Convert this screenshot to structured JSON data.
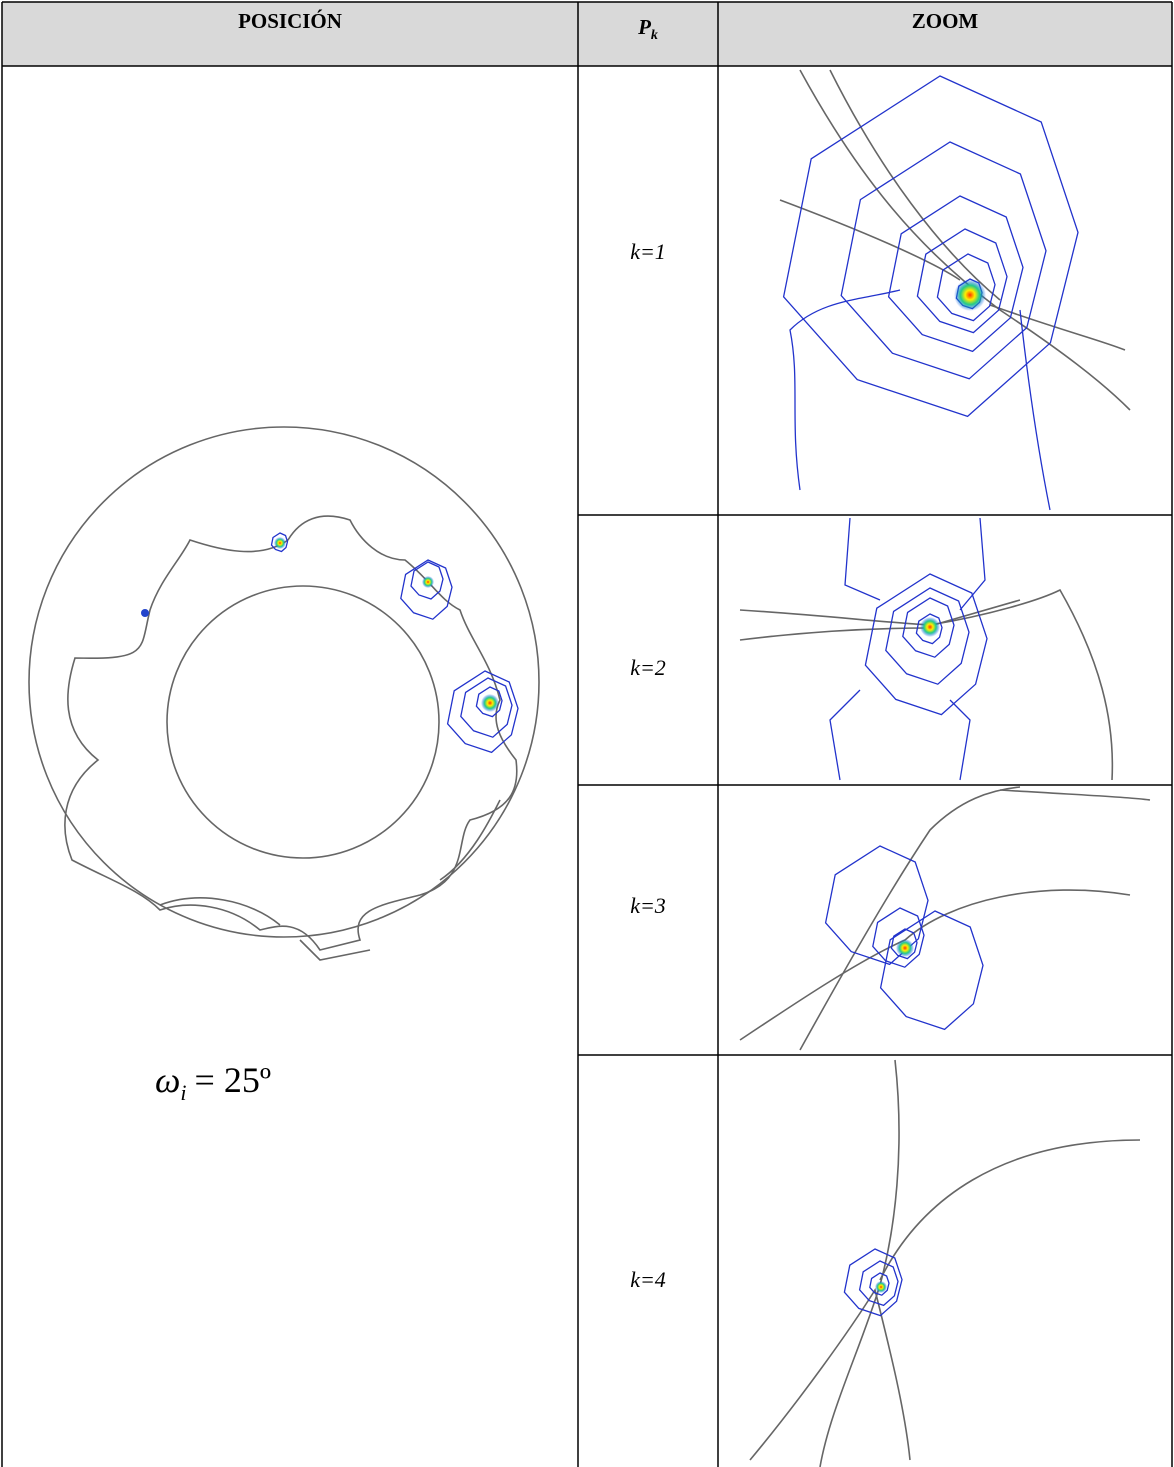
{
  "table": {
    "header": {
      "position": "POSICIÓN",
      "pk": {
        "symbol": "P",
        "subscript": "k"
      },
      "zoom": "ZOOM"
    },
    "rows": [
      "k=1",
      "k=2",
      "k=3",
      "k=4"
    ],
    "angle": {
      "symbol": "ω",
      "subscript": "i",
      "equals": "= 25º"
    }
  }
}
